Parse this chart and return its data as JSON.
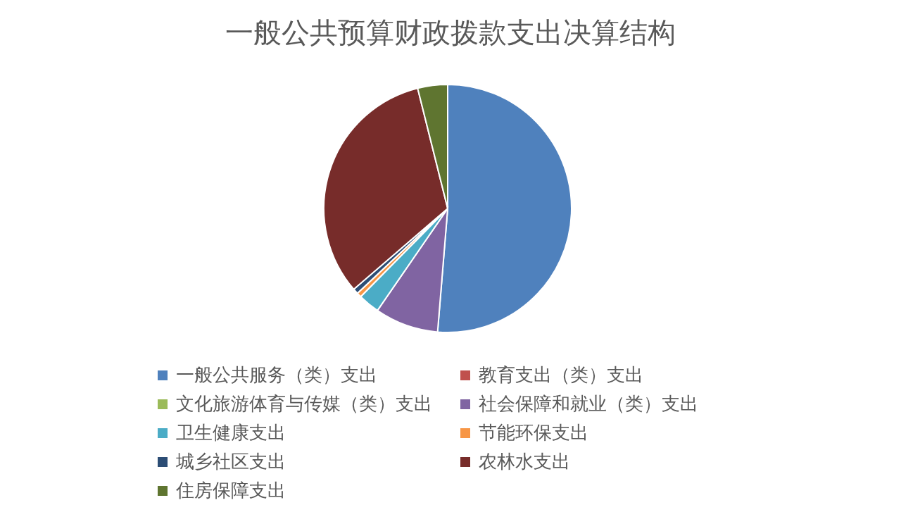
{
  "chart_data": {
    "type": "pie",
    "title": "一般公共预算财政拨款支出决算结构",
    "categories": [
      "一般公共服务（类）支出",
      "教育支出（类）支出",
      "文化旅游体育与传媒（类）支出",
      "社会保障和就业（类）支出",
      "卫生健康支出",
      "节能环保支出",
      "城乡社区支出",
      "农林水支出",
      "住房保障支出"
    ],
    "values": [
      51.3,
      0,
      0,
      8.3,
      2.8,
      0.6,
      0.7,
      32.4,
      3.9
    ],
    "colors": [
      "#4f81bd",
      "#c0504d",
      "#9bbb59",
      "#8064a2",
      "#4bacc6",
      "#f79646",
      "#2c4d75",
      "#772c2a",
      "#5f7530"
    ],
    "legend": "bottom"
  }
}
